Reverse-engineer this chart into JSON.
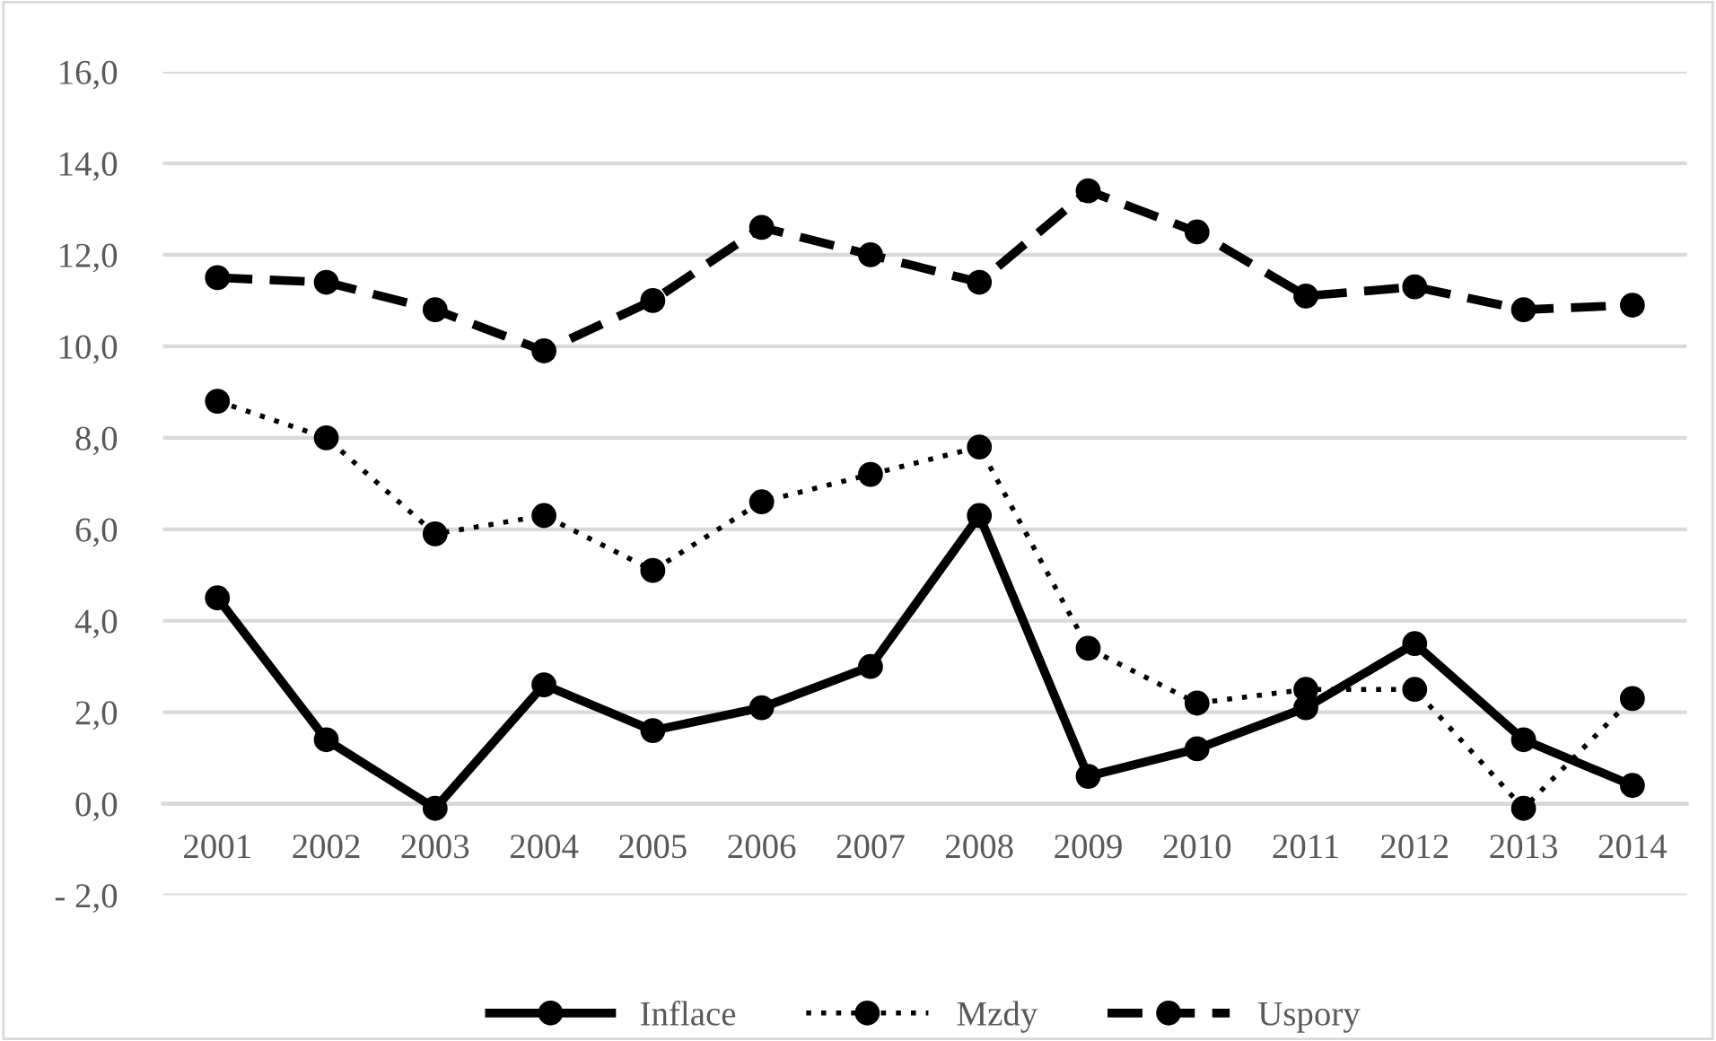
{
  "chart_data": {
    "type": "line",
    "categories": [
      "2001",
      "2002",
      "2003",
      "2004",
      "2005",
      "2006",
      "2007",
      "2008",
      "2009",
      "2010",
      "2011",
      "2012",
      "2013",
      "2014"
    ],
    "series": [
      {
        "name": "Inflace",
        "color": "#000000",
        "marker": "circle",
        "line_style": "solid",
        "values": [
          4.5,
          1.4,
          -0.1,
          2.6,
          1.6,
          2.1,
          3.0,
          6.3,
          0.6,
          1.2,
          2.1,
          3.5,
          1.4,
          0.4
        ]
      },
      {
        "name": "Mzdy",
        "color": "#000000",
        "marker": "circle",
        "line_style": "dotted",
        "values": [
          8.8,
          8.0,
          5.9,
          6.3,
          5.1,
          6.6,
          7.2,
          7.8,
          3.4,
          2.2,
          2.5,
          2.5,
          -0.1,
          2.3
        ]
      },
      {
        "name": "Uspory",
        "color": "#000000",
        "marker": "circle",
        "line_style": "dashed",
        "values": [
          11.5,
          11.4,
          10.8,
          9.9,
          11.0,
          12.6,
          12.0,
          11.4,
          13.4,
          12.5,
          11.1,
          11.3,
          10.8,
          10.9
        ]
      }
    ],
    "ylim": [
      -2,
      16
    ],
    "yticks": [
      {
        "value": -2,
        "label": "- 2,0"
      },
      {
        "value": 0,
        "label": "0,0"
      },
      {
        "value": 2,
        "label": "2,0"
      },
      {
        "value": 4,
        "label": "4,0"
      },
      {
        "value": 6,
        "label": "6,0"
      },
      {
        "value": 8,
        "label": "8,0"
      },
      {
        "value": 10,
        "label": "10,0"
      },
      {
        "value": 12,
        "label": "12,0"
      },
      {
        "value": 14,
        "label": "14,0"
      },
      {
        "value": 16,
        "label": "16,0"
      }
    ],
    "grid": "y",
    "legend": "bottom"
  }
}
